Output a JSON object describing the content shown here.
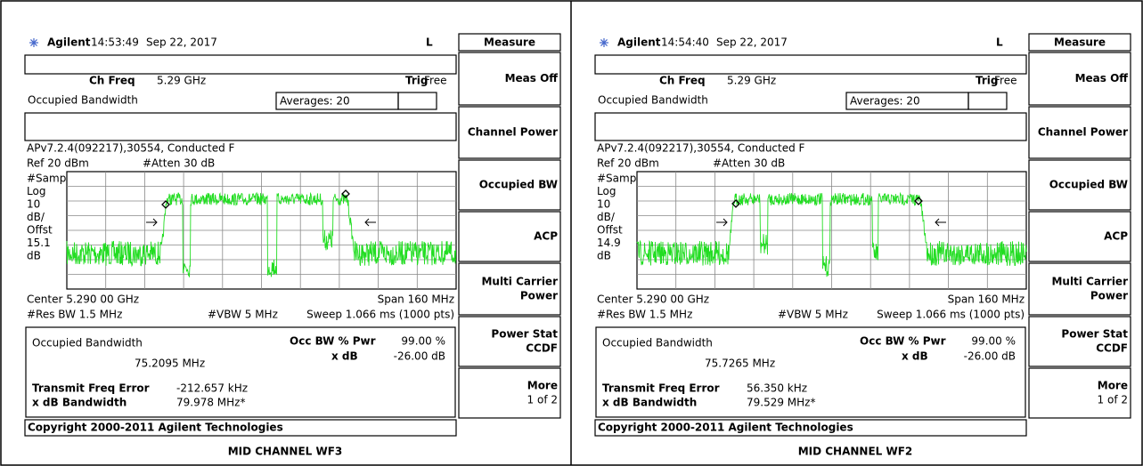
{
  "panels": [
    {
      "brand": "Agilent",
      "time": "14:53:49",
      "date": "Sep 22, 2017",
      "mode": "L",
      "ch_freq_label": "Ch Freq",
      "ch_freq": "5.29 GHz",
      "trig_label": "Trig",
      "trig": "Free",
      "measurement": "Occupied Bandwidth",
      "averages": "Averages: 20",
      "info": "APv7.2.4(092217),30554, Conducted F",
      "ref": "Ref 20 dBm",
      "atten": "#Atten 30 dB",
      "left_labels": [
        "#Samp",
        "Log",
        "10",
        "dB/",
        "Offst",
        "15.1",
        "dB"
      ],
      "center": "Center 5.290 00 GHz",
      "span": "Span 160 MHz",
      "res_bw": "#Res BW 1.5 MHz",
      "vbw": "#VBW 5 MHz",
      "sweep": "Sweep 1.066 ms (1000 pts)",
      "result_title": "Occupied Bandwidth",
      "result_value": "75.2095 MHz",
      "occ_label": "Occ BW % Pwr",
      "occ_value": "99.00 %",
      "xdb_label": "x dB",
      "xdb_value": "-26.00 dB",
      "tfe_label": "Transmit Freq Error",
      "tfe_value": "-212.657 kHz",
      "xdbbw_label": "x dB Bandwidth",
      "xdbbw_value": "79.978 MHz*",
      "copyright": "Copyright 2000-2011 Agilent Technologies",
      "menu_title": "Measure",
      "softkeys": [
        [
          "Meas Off"
        ],
        [
          "Channel Power"
        ],
        [
          "Occupied BW"
        ],
        [
          "ACP"
        ],
        [
          "Multi Carrier",
          "Power"
        ],
        [
          "Power Stat",
          "CCDF"
        ],
        [
          "More",
          "1 of 2"
        ]
      ],
      "caption": "MID CHANNEL WF3"
    },
    {
      "brand": "Agilent",
      "time": "14:54:40",
      "date": "Sep 22, 2017",
      "mode": "L",
      "ch_freq_label": "Ch Freq",
      "ch_freq": "5.29 GHz",
      "trig_label": "Trig",
      "trig": "Free",
      "measurement": "Occupied Bandwidth",
      "averages": "Averages: 20",
      "info": "APv7.2.4(092217),30554, Conducted F",
      "ref": "Ref 20 dBm",
      "atten": "#Atten 30 dB",
      "left_labels": [
        "#Samp",
        "Log",
        "10",
        "dB/",
        "Offst",
        "14.9",
        "dB"
      ],
      "center": "Center 5.290 00 GHz",
      "span": "Span 160 MHz",
      "res_bw": "#Res BW 1.5 MHz",
      "vbw": "#VBW 5 MHz",
      "sweep": "Sweep 1.066 ms (1000 pts)",
      "result_title": "Occupied Bandwidth",
      "result_value": "75.7265 MHz",
      "occ_label": "Occ BW % Pwr",
      "occ_value": "99.00 %",
      "xdb_label": "x dB",
      "xdb_value": "-26.00 dB",
      "tfe_label": "Transmit Freq Error",
      "tfe_value": "56.350 kHz",
      "xdbbw_label": "x dB Bandwidth",
      "xdbbw_value": "79.529 MHz*",
      "copyright": "Copyright 2000-2011 Agilent Technologies",
      "menu_title": "Measure",
      "softkeys": [
        [
          "Meas Off"
        ],
        [
          "Channel Power"
        ],
        [
          "Occupied BW"
        ],
        [
          "ACP"
        ],
        [
          "Multi Carrier",
          "Power"
        ],
        [
          "Power Stat",
          "CCDF"
        ],
        [
          "More",
          "1 of 2"
        ]
      ],
      "caption": "MID CHANNEL WF2"
    }
  ]
}
